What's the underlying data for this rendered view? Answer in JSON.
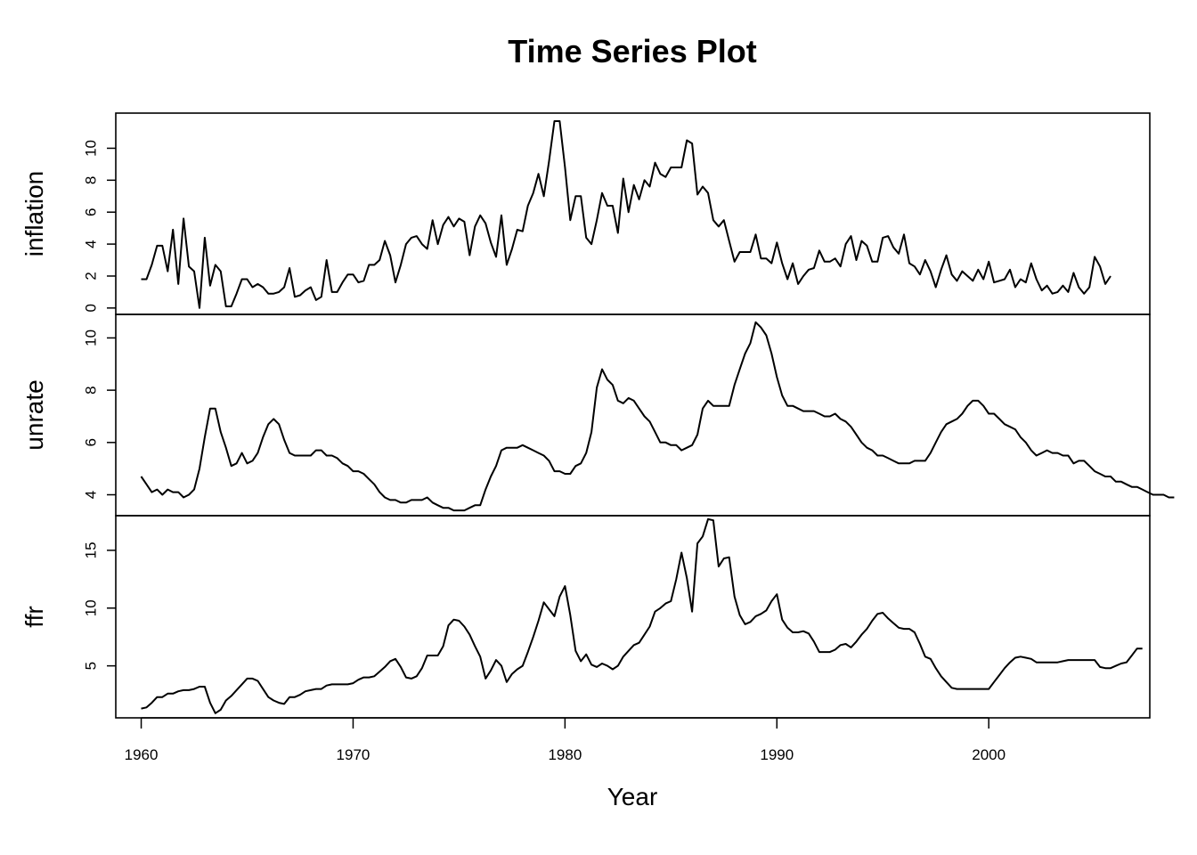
{
  "chart_data": {
    "type": "line",
    "title": "Time Series Plot",
    "xlabel": "Year",
    "xlim": [
      1958.8,
      2007.6
    ],
    "x_ticks": [
      1960,
      1970,
      1980,
      1990,
      2000
    ],
    "grid": false,
    "panels": [
      {
        "name": "inflation",
        "ylabel": "inflation",
        "ylim": [
          -0.4,
          12.2
        ],
        "y_ticks": [
          0,
          2,
          4,
          6,
          8,
          10
        ],
        "series": [
          {
            "start": 1960.0,
            "step": 0.25,
            "values": [
              1.8,
              1.8,
              2.7,
              3.9,
              3.9,
              2.3,
              4.9,
              1.5,
              5.6,
              2.6,
              2.3,
              0.0,
              4.4,
              1.4,
              2.7,
              2.3,
              0.1,
              0.1,
              0.9,
              1.8,
              1.8,
              1.3,
              1.5,
              1.3,
              0.9,
              0.9,
              1.0,
              1.3,
              2.5,
              0.7,
              0.8,
              1.1,
              1.3,
              0.5,
              0.7,
              3.0,
              1.0,
              1.0,
              1.6,
              2.1,
              2.1,
              1.6,
              1.7,
              2.7,
              2.7,
              3.0,
              4.2,
              3.3,
              1.6,
              2.7,
              4.0,
              4.4,
              4.5,
              4.0,
              3.7,
              5.5,
              4.0,
              5.2,
              5.7,
              5.1,
              5.6,
              5.4,
              3.3,
              5.1,
              5.8,
              5.3,
              4.1,
              3.2,
              5.8,
              2.7,
              3.7,
              4.9,
              4.8,
              6.4,
              7.2,
              8.4,
              7.0,
              9.2,
              11.7,
              11.7,
              8.8,
              5.5,
              7.0,
              7.0,
              4.4,
              4.0,
              5.5,
              7.2,
              6.4,
              6.4,
              4.7,
              8.1,
              6.0,
              7.7,
              6.8,
              8.0,
              7.6,
              9.1,
              8.4,
              8.2,
              8.8,
              8.8,
              8.8,
              10.5,
              10.3,
              7.1,
              7.6,
              7.2,
              5.5,
              5.1,
              5.5,
              4.2,
              2.9,
              3.5,
              3.5,
              3.5,
              4.6,
              3.1,
              3.1,
              2.8,
              4.1,
              2.8,
              1.8,
              2.8,
              1.5,
              2.0,
              2.4,
              2.5,
              3.6,
              2.9,
              2.9,
              3.1,
              2.6,
              4.0,
              4.5,
              3.0,
              4.2,
              3.9,
              2.9,
              2.9,
              4.4,
              4.5,
              3.8,
              3.4,
              4.6,
              2.8,
              2.6,
              2.1,
              3.0,
              2.3,
              1.3,
              2.4,
              3.3,
              2.1,
              1.7,
              2.3,
              2.0,
              1.7,
              2.4,
              1.8,
              2.9,
              1.6,
              1.7,
              1.8,
              2.4,
              1.3,
              1.8,
              1.6,
              2.8,
              1.8,
              1.1,
              1.4,
              0.9,
              1.0,
              1.4,
              1.0,
              2.2,
              1.3,
              0.9,
              1.3,
              3.2,
              2.6,
              1.5,
              2.0
            ]
          }
        ]
      },
      {
        "name": "unrate",
        "ylabel": "unrate",
        "ylim": [
          3.2,
          10.9
        ],
        "y_ticks": [
          4,
          6,
          8,
          10
        ],
        "series": [
          {
            "start": 1960.0,
            "step": 0.25,
            "values": [
              4.7,
              4.4,
              4.1,
              4.2,
              4.0,
              4.2,
              4.1,
              4.1,
              3.9,
              4.0,
              4.2,
              5.0,
              6.2,
              7.3,
              7.3,
              6.4,
              5.8,
              5.1,
              5.2,
              5.6,
              5.2,
              5.3,
              5.6,
              6.2,
              6.7,
              6.9,
              6.7,
              6.1,
              5.6,
              5.5,
              5.5,
              5.5,
              5.5,
              5.7,
              5.7,
              5.5,
              5.5,
              5.4,
              5.2,
              5.1,
              4.9,
              4.9,
              4.8,
              4.6,
              4.4,
              4.1,
              3.9,
              3.8,
              3.8,
              3.7,
              3.7,
              3.8,
              3.8,
              3.8,
              3.9,
              3.7,
              3.6,
              3.5,
              3.5,
              3.4,
              3.4,
              3.4,
              3.5,
              3.6,
              3.6,
              4.2,
              4.7,
              5.1,
              5.7,
              5.8,
              5.8,
              5.8,
              5.9,
              5.8,
              5.7,
              5.6,
              5.5,
              5.3,
              4.9,
              4.9,
              4.8,
              4.8,
              5.1,
              5.2,
              5.6,
              6.4,
              8.1,
              8.8,
              8.4,
              8.2,
              7.6,
              7.5,
              7.7,
              7.6,
              7.3,
              7.0,
              6.8,
              6.4,
              6.0,
              6.0,
              5.9,
              5.9,
              5.7,
              5.8,
              5.9,
              6.3,
              7.3,
              7.6,
              7.4,
              7.4,
              7.4,
              7.4,
              8.2,
              8.8,
              9.4,
              9.8,
              10.6,
              10.4,
              10.1,
              9.4,
              8.5,
              7.8,
              7.4,
              7.4,
              7.3,
              7.2,
              7.2,
              7.2,
              7.1,
              7.0,
              7.0,
              7.1,
              6.9,
              6.8,
              6.6,
              6.3,
              6.0,
              5.8,
              5.7,
              5.5,
              5.5,
              5.4,
              5.3,
              5.2,
              5.2,
              5.2,
              5.3,
              5.3,
              5.3,
              5.6,
              6.0,
              6.4,
              6.7,
              6.8,
              6.9,
              7.1,
              7.4,
              7.6,
              7.6,
              7.4,
              7.1,
              7.1,
              6.9,
              6.7,
              6.6,
              6.5,
              6.2,
              6.0,
              5.7,
              5.5,
              5.6,
              5.7,
              5.6,
              5.6,
              5.5,
              5.5,
              5.2,
              5.3,
              5.3,
              5.1,
              4.9,
              4.8,
              4.7,
              4.7,
              4.5,
              4.5,
              4.4,
              4.3,
              4.3,
              4.2,
              4.1,
              4.0,
              4.0,
              4.0,
              3.9,
              3.9
            ]
          }
        ]
      },
      {
        "name": "ffr",
        "ylabel": "ffr",
        "ylim": [
          0.5,
          18.0
        ],
        "y_ticks": [
          5,
          10,
          15
        ],
        "series": [
          {
            "start": 1960.0,
            "step": 0.25,
            "values": [
              1.3,
              1.4,
              1.8,
              2.3,
              2.3,
              2.6,
              2.6,
              2.8,
              2.9,
              2.9,
              3.0,
              3.2,
              3.2,
              1.8,
              0.9,
              1.2,
              2.0,
              2.4,
              2.9,
              3.4,
              3.9,
              3.9,
              3.7,
              3.0,
              2.3,
              2.0,
              1.8,
              1.7,
              2.3,
              2.3,
              2.5,
              2.8,
              2.9,
              3.0,
              3.0,
              3.3,
              3.4,
              3.4,
              3.4,
              3.4,
              3.5,
              3.8,
              4.0,
              4.0,
              4.1,
              4.5,
              4.9,
              5.4,
              5.6,
              4.9,
              4.0,
              3.9,
              4.1,
              4.8,
              5.9,
              5.9,
              5.9,
              6.7,
              8.5,
              9.0,
              8.9,
              8.4,
              7.7,
              6.7,
              5.8,
              3.9,
              4.6,
              5.5,
              5.0,
              3.6,
              4.3,
              4.7,
              5.0,
              6.2,
              7.5,
              8.9,
              10.5,
              9.9,
              9.3,
              11.0,
              11.9,
              9.4,
              6.3,
              5.4,
              6.0,
              5.1,
              4.9,
              5.2,
              5.0,
              4.7,
              5.0,
              5.8,
              6.3,
              6.8,
              7.0,
              7.7,
              8.4,
              9.7,
              10.0,
              10.4,
              10.6,
              12.5,
              14.8,
              12.6,
              9.7,
              15.6,
              16.2,
              17.7,
              17.6,
              13.6,
              14.3,
              14.4,
              11.0,
              9.4,
              8.6,
              8.8,
              9.3,
              9.5,
              9.8,
              10.6,
              11.2,
              9.0,
              8.3,
              7.9,
              7.9,
              8.0,
              7.8,
              7.1,
              6.2,
              6.2,
              6.2,
              6.4,
              6.8,
              6.9,
              6.6,
              7.1,
              7.7,
              8.2,
              8.9,
              9.5,
              9.6,
              9.1,
              8.7,
              8.3,
              8.2,
              8.2,
              7.9,
              6.9,
              5.8,
              5.6,
              4.8,
              4.1,
              3.6,
              3.1,
              3.0,
              3.0,
              3.0,
              3.0,
              3.0,
              3.0,
              3.0,
              3.6,
              4.2,
              4.8,
              5.3,
              5.7,
              5.8,
              5.7,
              5.6,
              5.3,
              5.3,
              5.3,
              5.3,
              5.3,
              5.4,
              5.5,
              5.5,
              5.5,
              5.5,
              5.5,
              5.5,
              4.9,
              4.8,
              4.8,
              5.0,
              5.2,
              5.3,
              5.9,
              6.5,
              6.5
            ]
          }
        ]
      }
    ]
  }
}
